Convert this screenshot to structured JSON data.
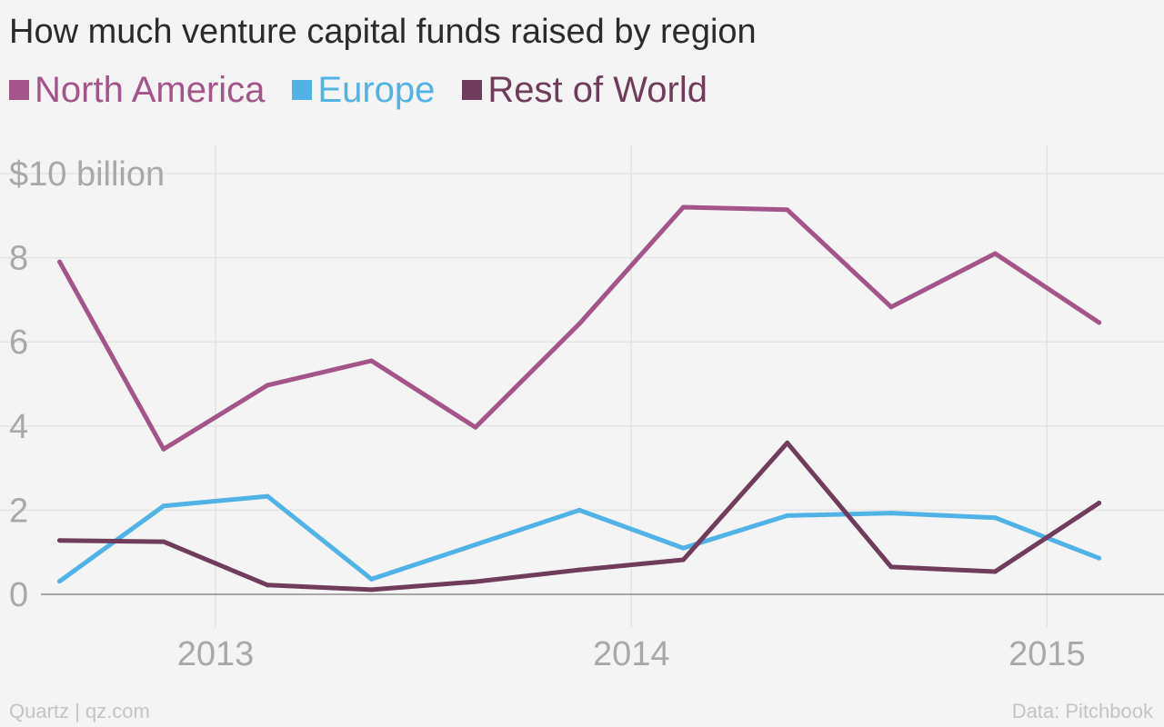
{
  "title": "How much venture capital funds raised by region",
  "footer": {
    "source": "Quartz | qz.com",
    "data_credit": "Data: Pitchbook"
  },
  "colors": {
    "north_america": "#a3558a",
    "europe": "#51b2e5",
    "rest_of_world": "#703c5c",
    "grid": "#e3e3e3",
    "tick_text": "#a8a8a8",
    "baseline": "#8c8c8c"
  },
  "chart_data": {
    "type": "line",
    "title": "How much venture capital funds raised by region",
    "xlabel": "",
    "ylabel": "",
    "ylim": [
      0,
      10
    ],
    "xlim": [
      2012.58,
      2015.22
    ],
    "grid": true,
    "legend": "top-left",
    "y_ticks": [
      {
        "value": 10,
        "label": "$10 billion"
      },
      {
        "value": 8,
        "label": "8"
      },
      {
        "value": 6,
        "label": "6"
      },
      {
        "value": 4,
        "label": "4"
      },
      {
        "value": 2,
        "label": "2"
      },
      {
        "value": 0,
        "label": "0"
      }
    ],
    "x_ticks": [
      {
        "value": 2013,
        "label": "2013"
      },
      {
        "value": 2014,
        "label": "2014"
      },
      {
        "value": 2015,
        "label": "2015"
      }
    ],
    "x": [
      2012.625,
      2012.875,
      2013.125,
      2013.375,
      2013.625,
      2013.875,
      2014.125,
      2014.375,
      2014.625,
      2014.875,
      2015.125
    ],
    "series": [
      {
        "name": "North America",
        "color_key": "north_america",
        "values": [
          7.9,
          3.45,
          4.97,
          5.55,
          3.97,
          6.43,
          9.2,
          9.14,
          6.83,
          8.1,
          6.46
        ]
      },
      {
        "name": "Europe",
        "color_key": "europe",
        "values": [
          0.31,
          2.1,
          2.33,
          0.36,
          1.18,
          2.0,
          1.1,
          1.87,
          1.93,
          1.82,
          0.86
        ]
      },
      {
        "name": "Rest of World",
        "color_key": "rest_of_world",
        "values": [
          1.28,
          1.25,
          0.22,
          0.11,
          0.3,
          0.58,
          0.82,
          3.6,
          0.65,
          0.54,
          2.17
        ]
      }
    ]
  }
}
